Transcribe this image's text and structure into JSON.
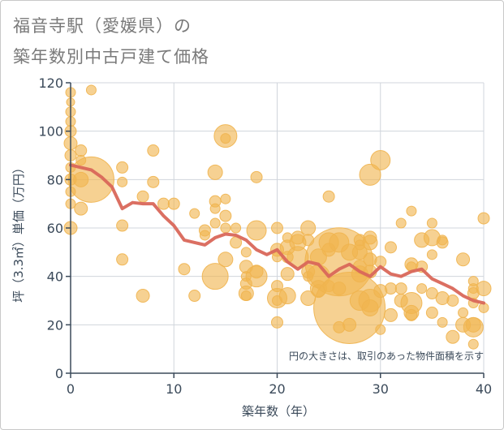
{
  "title_line1": "福音寺駅（愛媛県）の",
  "title_line2": "築年数別中古戸建て価格",
  "chart_data": {
    "type": "scatter",
    "xlabel": "築年数（年）",
    "ylabel": "坪（3.3㎡）単価（万円）",
    "xlim": [
      0,
      40
    ],
    "ylim": [
      0,
      120
    ],
    "xticks": [
      0,
      10,
      20,
      30,
      40
    ],
    "yticks": [
      0,
      20,
      40,
      60,
      80,
      100,
      120
    ],
    "grid": true,
    "annotation": "円の大きさは、取引のあった物件面積を示す",
    "colors": {
      "bubble": "#f0b44f",
      "line": "#d9675a",
      "axis": "#3b4a5a",
      "grid": "#d0d5dc"
    },
    "trend_line": [
      {
        "x": 0,
        "y": 86
      },
      {
        "x": 1,
        "y": 85
      },
      {
        "x": 2,
        "y": 84
      },
      {
        "x": 3,
        "y": 81
      },
      {
        "x": 4,
        "y": 77
      },
      {
        "x": 5,
        "y": 68
      },
      {
        "x": 6,
        "y": 70.5
      },
      {
        "x": 7,
        "y": 70
      },
      {
        "x": 8,
        "y": 70
      },
      {
        "x": 9,
        "y": 65
      },
      {
        "x": 10,
        "y": 61
      },
      {
        "x": 11,
        "y": 55
      },
      {
        "x": 12,
        "y": 54
      },
      {
        "x": 13,
        "y": 53
      },
      {
        "x": 14,
        "y": 56
      },
      {
        "x": 15,
        "y": 57.5
      },
      {
        "x": 16,
        "y": 57
      },
      {
        "x": 17,
        "y": 55
      },
      {
        "x": 18,
        "y": 51
      },
      {
        "x": 19,
        "y": 49
      },
      {
        "x": 20,
        "y": 51
      },
      {
        "x": 21,
        "y": 46
      },
      {
        "x": 22,
        "y": 43
      },
      {
        "x": 23,
        "y": 46
      },
      {
        "x": 24,
        "y": 45
      },
      {
        "x": 25,
        "y": 40
      },
      {
        "x": 26,
        "y": 43
      },
      {
        "x": 27,
        "y": 45
      },
      {
        "x": 28,
        "y": 42
      },
      {
        "x": 29,
        "y": 40
      },
      {
        "x": 30,
        "y": 44
      },
      {
        "x": 31,
        "y": 41
      },
      {
        "x": 32,
        "y": 40
      },
      {
        "x": 33,
        "y": 42
      },
      {
        "x": 34,
        "y": 43
      },
      {
        "x": 35,
        "y": 39
      },
      {
        "x": 36,
        "y": 37
      },
      {
        "x": 37,
        "y": 35
      },
      {
        "x": 38,
        "y": 32
      },
      {
        "x": 39,
        "y": 30
      },
      {
        "x": 40,
        "y": 29
      }
    ],
    "bubbles": [
      {
        "x": 0,
        "y": 116,
        "s": 6
      },
      {
        "x": 0,
        "y": 112,
        "s": 5
      },
      {
        "x": 0,
        "y": 108,
        "s": 6
      },
      {
        "x": 0,
        "y": 104,
        "s": 6
      },
      {
        "x": 0,
        "y": 100,
        "s": 7
      },
      {
        "x": 0,
        "y": 95,
        "s": 8
      },
      {
        "x": 0,
        "y": 90,
        "s": 7
      },
      {
        "x": 0,
        "y": 85,
        "s": 6
      },
      {
        "x": 0,
        "y": 80,
        "s": 7
      },
      {
        "x": 0,
        "y": 75,
        "s": 6
      },
      {
        "x": 0,
        "y": 70,
        "s": 6
      },
      {
        "x": 0,
        "y": 60,
        "s": 8
      },
      {
        "x": 1,
        "y": 92,
        "s": 7
      },
      {
        "x": 1,
        "y": 88,
        "s": 6
      },
      {
        "x": 1,
        "y": 80,
        "s": 9
      },
      {
        "x": 1,
        "y": 68,
        "s": 8
      },
      {
        "x": 2,
        "y": 117,
        "s": 6
      },
      {
        "x": 2,
        "y": 80,
        "s": 28
      },
      {
        "x": 5,
        "y": 85,
        "s": 7
      },
      {
        "x": 5,
        "y": 79,
        "s": 6
      },
      {
        "x": 5,
        "y": 61,
        "s": 7
      },
      {
        "x": 5,
        "y": 47,
        "s": 7
      },
      {
        "x": 7,
        "y": 73,
        "s": 7
      },
      {
        "x": 7,
        "y": 32,
        "s": 8
      },
      {
        "x": 8,
        "y": 92,
        "s": 7
      },
      {
        "x": 8,
        "y": 79,
        "s": 7
      },
      {
        "x": 9,
        "y": 70,
        "s": 7
      },
      {
        "x": 10,
        "y": 70,
        "s": 7
      },
      {
        "x": 11,
        "y": 43,
        "s": 7
      },
      {
        "x": 12,
        "y": 66,
        "s": 6
      },
      {
        "x": 12,
        "y": 32,
        "s": 7
      },
      {
        "x": 13,
        "y": 59,
        "s": 7
      },
      {
        "x": 13,
        "y": 57,
        "s": 6
      },
      {
        "x": 14,
        "y": 83,
        "s": 9
      },
      {
        "x": 14,
        "y": 71,
        "s": 7
      },
      {
        "x": 14,
        "y": 68,
        "s": 6
      },
      {
        "x": 14,
        "y": 62,
        "s": 6
      },
      {
        "x": 14,
        "y": 40,
        "s": 16
      },
      {
        "x": 15,
        "y": 98,
        "s": 14
      },
      {
        "x": 15,
        "y": 97,
        "s": 6
      },
      {
        "x": 15,
        "y": 72,
        "s": 6
      },
      {
        "x": 15,
        "y": 65,
        "s": 7
      },
      {
        "x": 15,
        "y": 60,
        "s": 6
      },
      {
        "x": 15,
        "y": 47,
        "s": 9
      },
      {
        "x": 16,
        "y": 60,
        "s": 6
      },
      {
        "x": 16,
        "y": 54,
        "s": 7
      },
      {
        "x": 17,
        "y": 50,
        "s": 6
      },
      {
        "x": 17,
        "y": 44,
        "s": 8
      },
      {
        "x": 17,
        "y": 40,
        "s": 6
      },
      {
        "x": 17,
        "y": 37,
        "s": 7
      },
      {
        "x": 17,
        "y": 33,
        "s": 9
      },
      {
        "x": 17,
        "y": 32,
        "s": 6
      },
      {
        "x": 18,
        "y": 81,
        "s": 7
      },
      {
        "x": 18,
        "y": 59,
        "s": 12
      },
      {
        "x": 18,
        "y": 42,
        "s": 8
      },
      {
        "x": 18,
        "y": 40,
        "s": 13
      },
      {
        "x": 20,
        "y": 60,
        "s": 7
      },
      {
        "x": 20,
        "y": 51,
        "s": 8
      },
      {
        "x": 20,
        "y": 48,
        "s": 6
      },
      {
        "x": 20,
        "y": 36,
        "s": 7
      },
      {
        "x": 20,
        "y": 31,
        "s": 12
      },
      {
        "x": 20,
        "y": 30,
        "s": 6
      },
      {
        "x": 20,
        "y": 21,
        "s": 7
      },
      {
        "x": 21,
        "y": 56,
        "s": 6
      },
      {
        "x": 21,
        "y": 52,
        "s": 9
      },
      {
        "x": 21,
        "y": 48,
        "s": 7
      },
      {
        "x": 21,
        "y": 41,
        "s": 8
      },
      {
        "x": 21,
        "y": 32,
        "s": 10
      },
      {
        "x": 22,
        "y": 56,
        "s": 8
      },
      {
        "x": 22,
        "y": 54,
        "s": 10
      },
      {
        "x": 22,
        "y": 48,
        "s": 13
      },
      {
        "x": 23,
        "y": 60,
        "s": 9
      },
      {
        "x": 23,
        "y": 55,
        "s": 7
      },
      {
        "x": 23,
        "y": 42,
        "s": 8
      },
      {
        "x": 23,
        "y": 40,
        "s": 6
      },
      {
        "x": 23,
        "y": 31,
        "s": 9
      },
      {
        "x": 24,
        "y": 48,
        "s": 10
      },
      {
        "x": 24,
        "y": 40,
        "s": 14
      },
      {
        "x": 24,
        "y": 35,
        "s": 10
      },
      {
        "x": 24,
        "y": 34,
        "s": 8
      },
      {
        "x": 25,
        "y": 73,
        "s": 7
      },
      {
        "x": 25,
        "y": 54,
        "s": 12
      },
      {
        "x": 25,
        "y": 51,
        "s": 8
      },
      {
        "x": 25,
        "y": 36,
        "s": 7
      },
      {
        "x": 26,
        "y": 54,
        "s": 12
      },
      {
        "x": 26,
        "y": 46,
        "s": 42
      },
      {
        "x": 26,
        "y": 35,
        "s": 8
      },
      {
        "x": 26,
        "y": 19,
        "s": 7
      },
      {
        "x": 27,
        "y": 50,
        "s": 10
      },
      {
        "x": 27,
        "y": 27,
        "s": 44
      },
      {
        "x": 27,
        "y": 20,
        "s": 8
      },
      {
        "x": 28,
        "y": 55,
        "s": 7
      },
      {
        "x": 28,
        "y": 53,
        "s": 6
      },
      {
        "x": 28,
        "y": 50,
        "s": 9
      },
      {
        "x": 28,
        "y": 44,
        "s": 8
      },
      {
        "x": 28,
        "y": 41,
        "s": 10
      },
      {
        "x": 28,
        "y": 30,
        "s": 12
      },
      {
        "x": 29,
        "y": 82,
        "s": 13
      },
      {
        "x": 29,
        "y": 56,
        "s": 8
      },
      {
        "x": 29,
        "y": 54,
        "s": 9
      },
      {
        "x": 29,
        "y": 47,
        "s": 8
      },
      {
        "x": 29,
        "y": 42,
        "s": 8
      },
      {
        "x": 29,
        "y": 30,
        "s": 14
      },
      {
        "x": 29,
        "y": 27,
        "s": 10
      },
      {
        "x": 30,
        "y": 88,
        "s": 12
      },
      {
        "x": 30,
        "y": 46,
        "s": 7
      },
      {
        "x": 30,
        "y": 34,
        "s": 8
      },
      {
        "x": 30,
        "y": 18,
        "s": 6
      },
      {
        "x": 31,
        "y": 52,
        "s": 7
      },
      {
        "x": 31,
        "y": 35,
        "s": 7
      },
      {
        "x": 31,
        "y": 24,
        "s": 8
      },
      {
        "x": 32,
        "y": 62,
        "s": 6
      },
      {
        "x": 32,
        "y": 35,
        "s": 7
      },
      {
        "x": 32,
        "y": 30,
        "s": 8
      },
      {
        "x": 33,
        "y": 67,
        "s": 6
      },
      {
        "x": 33,
        "y": 45,
        "s": 8
      },
      {
        "x": 33,
        "y": 44,
        "s": 6
      },
      {
        "x": 33,
        "y": 29,
        "s": 13
      },
      {
        "x": 33,
        "y": 25,
        "s": 9
      },
      {
        "x": 33,
        "y": 24,
        "s": 7
      },
      {
        "x": 34,
        "y": 55,
        "s": 9
      },
      {
        "x": 34,
        "y": 44,
        "s": 7
      },
      {
        "x": 34,
        "y": 35,
        "s": 6
      },
      {
        "x": 35,
        "y": 62,
        "s": 6
      },
      {
        "x": 35,
        "y": 56,
        "s": 10
      },
      {
        "x": 35,
        "y": 49,
        "s": 6
      },
      {
        "x": 35,
        "y": 33,
        "s": 7
      },
      {
        "x": 35,
        "y": 25,
        "s": 7
      },
      {
        "x": 36,
        "y": 55,
        "s": 6
      },
      {
        "x": 36,
        "y": 54,
        "s": 7
      },
      {
        "x": 36,
        "y": 31,
        "s": 8
      },
      {
        "x": 36,
        "y": 21,
        "s": 6
      },
      {
        "x": 37,
        "y": 30,
        "s": 7
      },
      {
        "x": 37,
        "y": 15,
        "s": 8
      },
      {
        "x": 38,
        "y": 47,
        "s": 8
      },
      {
        "x": 38,
        "y": 25,
        "s": 6
      },
      {
        "x": 38,
        "y": 20,
        "s": 9
      },
      {
        "x": 39,
        "y": 38,
        "s": 6
      },
      {
        "x": 39,
        "y": 35,
        "s": 6
      },
      {
        "x": 39,
        "y": 33,
        "s": 7
      },
      {
        "x": 39,
        "y": 29,
        "s": 6
      },
      {
        "x": 39,
        "y": 20,
        "s": 9
      },
      {
        "x": 39,
        "y": 19,
        "s": 12
      },
      {
        "x": 39,
        "y": 12,
        "s": 6
      },
      {
        "x": 40,
        "y": 64,
        "s": 7
      },
      {
        "x": 40,
        "y": 35,
        "s": 9
      },
      {
        "x": 40,
        "y": 27,
        "s": 6
      }
    ]
  }
}
